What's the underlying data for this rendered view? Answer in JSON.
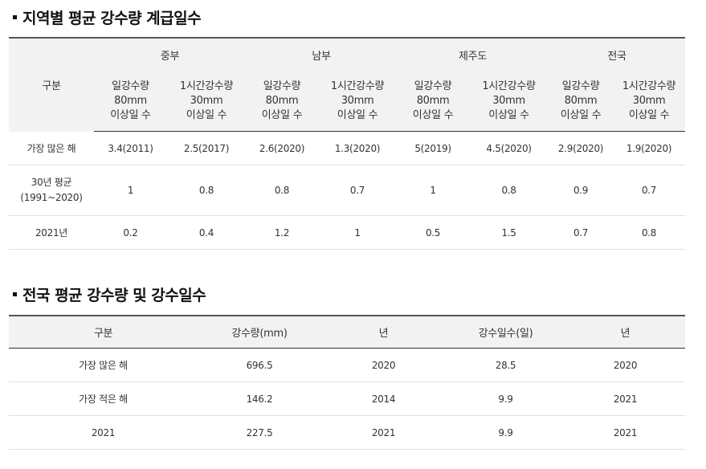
{
  "section1": {
    "title": "지역별 평균 강수량 계급일수",
    "corner_header": "구분",
    "regions": [
      "중부",
      "남부",
      "제주도",
      "전국"
    ],
    "sub_headers": [
      [
        "일강수량",
        "80mm",
        "이상일 수"
      ],
      [
        "1시간강수량",
        "30mm",
        "이상일 수"
      ]
    ],
    "rows": [
      {
        "label": [
          "가장 많은 해"
        ],
        "values": [
          "3.4(2011)",
          "2.5(2017)",
          "2.6(2020)",
          "1.3(2020)",
          "5(2019)",
          "4.5(2020)",
          "2.9(2020)",
          "1.9(2020)"
        ]
      },
      {
        "label": [
          "30년 평균",
          "(1991~2020)"
        ],
        "values": [
          "1",
          "0.8",
          "0.8",
          "0.7",
          "1",
          "0.8",
          "0.9",
          "0.7"
        ]
      },
      {
        "label": [
          "2021년"
        ],
        "values": [
          "0.2",
          "0.4",
          "1.2",
          "1",
          "0.5",
          "1.5",
          "0.7",
          "0.8"
        ]
      }
    ]
  },
  "section2": {
    "title": "전국 평균 강수량 및 강수일수",
    "headers": [
      "구분",
      "강수량(mm)",
      "년",
      "강수일수(일)",
      "년"
    ],
    "rows": [
      [
        "가장 많은 해",
        "696.5",
        "2020",
        "28.5",
        "2020"
      ],
      [
        "가장 적은 해",
        "146.2",
        "2014",
        "9.9",
        "2021"
      ],
      [
        "2021",
        "227.5",
        "2021",
        "9.9",
        "2021"
      ]
    ]
  },
  "colors": {
    "header_bg": "#f2f2f2",
    "top_rule": "#555555",
    "row_rule": "#e0e0e0",
    "text": "#333333"
  }
}
